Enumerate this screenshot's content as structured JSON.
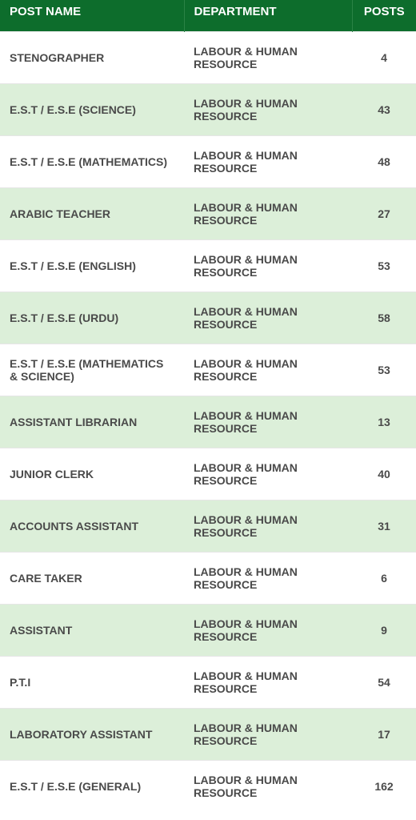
{
  "table": {
    "columns": [
      "POST NAME",
      "DEPARTMENT",
      "POSTS"
    ],
    "header_bg": "#0d6d2c",
    "header_color": "#ffffff",
    "row_odd_bg": "#ffffff",
    "row_even_bg": "#dcefd9",
    "text_color": "#4a4a4a",
    "font_size_header": 15,
    "font_size_cell": 14,
    "rows": [
      {
        "post": "STENOGRAPHER",
        "dept": "LABOUR & HUMAN RESOURCE",
        "posts": "4"
      },
      {
        "post": "E.S.T / E.S.E (SCIENCE)",
        "dept": "LABOUR & HUMAN RESOURCE",
        "posts": "43"
      },
      {
        "post": "E.S.T / E.S.E (MATHEMATICS)",
        "dept": "LABOUR & HUMAN RESOURCE",
        "posts": "48"
      },
      {
        "post": "ARABIC TEACHER",
        "dept": "LABOUR & HUMAN RESOURCE",
        "posts": "27"
      },
      {
        "post": "E.S.T / E.S.E (ENGLISH)",
        "dept": "LABOUR & HUMAN RESOURCE",
        "posts": "53"
      },
      {
        "post": "E.S.T / E.S.E (URDU)",
        "dept": "LABOUR & HUMAN RESOURCE",
        "posts": "58"
      },
      {
        "post": "E.S.T / E.S.E (MATHEMATICS & SCIENCE)",
        "dept": "LABOUR & HUMAN RESOURCE",
        "posts": "53"
      },
      {
        "post": "ASSISTANT LIBRARIAN",
        "dept": "LABOUR & HUMAN RESOURCE",
        "posts": "13"
      },
      {
        "post": "JUNIOR CLERK",
        "dept": "LABOUR & HUMAN RESOURCE",
        "posts": "40"
      },
      {
        "post": "ACCOUNTS ASSISTANT",
        "dept": "LABOUR & HUMAN RESOURCE",
        "posts": "31"
      },
      {
        "post": "CARE TAKER",
        "dept": "LABOUR & HUMAN RESOURCE",
        "posts": "6"
      },
      {
        "post": "ASSISTANT",
        "dept": "LABOUR & HUMAN RESOURCE",
        "posts": "9"
      },
      {
        "post": "P.T.I",
        "dept": "LABOUR & HUMAN RESOURCE",
        "posts": "54"
      },
      {
        "post": "LABORATORY ASSISTANT",
        "dept": "LABOUR & HUMAN RESOURCE",
        "posts": "17"
      },
      {
        "post": "E.S.T / E.S.E (GENERAL)",
        "dept": "LABOUR & HUMAN RESOURCE",
        "posts": "162"
      }
    ]
  }
}
